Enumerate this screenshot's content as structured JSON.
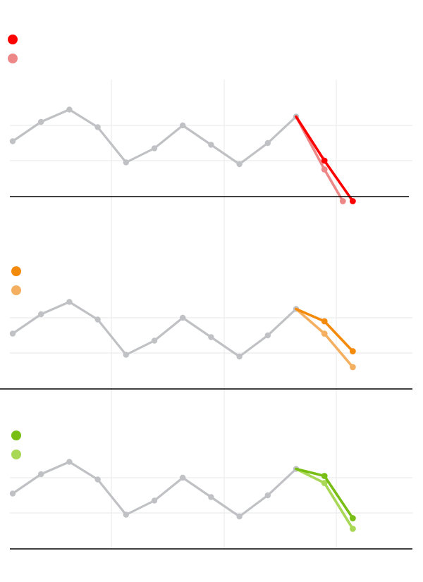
{
  "chart_data": [
    {
      "type": "line",
      "panel": "red",
      "x": [
        0,
        1,
        2,
        3,
        4,
        5,
        6,
        7,
        8,
        9,
        10
      ],
      "history": {
        "color": "#c0c1c4",
        "values": [
          0.55,
          1.1,
          1.45,
          0.95,
          -0.05,
          0.35,
          1.0,
          0.45,
          -0.1,
          0.5,
          1.25
        ]
      },
      "series": [
        {
          "legend_color": "#ff0000",
          "color": "#ff0000",
          "x": [
            10,
            11,
            12
          ],
          "values": [
            1.25,
            0.0,
            -1.15
          ]
        },
        {
          "legend_color": "#ee8888",
          "color": "#ee8888",
          "x": [
            10,
            11,
            11.65
          ],
          "values": [
            1.25,
            -0.25,
            -1.15
          ]
        }
      ],
      "vertical_grid": true,
      "horizontal_grid": true
    },
    {
      "type": "line",
      "panel": "orange",
      "x": [
        0,
        1,
        2,
        3,
        4,
        5,
        6,
        7,
        8,
        9,
        10
      ],
      "history": {
        "color": "#c0c1c4",
        "values": [
          0.55,
          1.1,
          1.45,
          0.95,
          -0.05,
          0.35,
          1.0,
          0.45,
          -0.1,
          0.5,
          1.25
        ]
      },
      "series": [
        {
          "legend_color": "#f48a0a",
          "color": "#f48a0a",
          "x": [
            10,
            11,
            12
          ],
          "values": [
            1.25,
            0.9,
            0.05
          ]
        },
        {
          "legend_color": "#f4b060",
          "color": "#f4b060",
          "x": [
            10,
            11,
            12
          ],
          "values": [
            1.25,
            0.55,
            -0.4
          ]
        }
      ],
      "vertical_grid": true,
      "horizontal_grid": true
    },
    {
      "type": "line",
      "panel": "green",
      "x": [
        0,
        1,
        2,
        3,
        4,
        5,
        6,
        7,
        8,
        9,
        10
      ],
      "history": {
        "color": "#c0c1c4",
        "values": [
          0.55,
          1.1,
          1.45,
          0.95,
          -0.05,
          0.35,
          1.0,
          0.45,
          -0.1,
          0.5,
          1.25
        ]
      },
      "series": [
        {
          "legend_color": "#78be14",
          "color": "#78be14",
          "x": [
            10,
            11,
            12
          ],
          "values": [
            1.25,
            1.05,
            -0.15
          ]
        },
        {
          "legend_color": "#a8d855",
          "color": "#a8d855",
          "x": [
            10,
            11,
            12
          ],
          "values": [
            1.25,
            0.85,
            -0.45
          ]
        }
      ],
      "vertical_grid": true,
      "horizontal_grid": true
    }
  ]
}
